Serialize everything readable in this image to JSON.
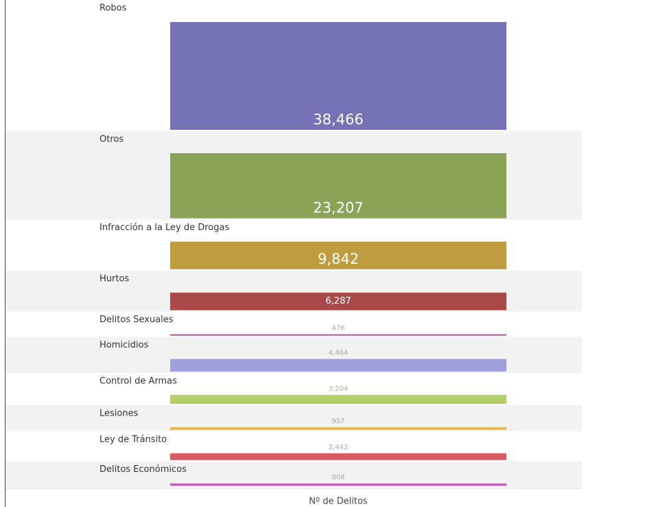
{
  "chart_data": {
    "type": "bar",
    "categories": [
      "Robos",
      "Otros",
      "Infracción a la Ley de Drogas",
      "Hurtos",
      "Delitos Sexuales",
      "Homicidios",
      "Control de Armas",
      "Lesiones",
      "Ley de Tránsito",
      "Delitos Económicos"
    ],
    "values": [
      38466,
      23207,
      9842,
      6287,
      476,
      4464,
      3204,
      957,
      2442,
      808
    ],
    "value_labels": [
      "38,466",
      "23,207",
      "9,842",
      "6,287",
      "476",
      "4,464",
      "3,204",
      "957",
      "2,442",
      "808"
    ],
    "colors": [
      "#7573b5",
      "#8ba356",
      "#bf9c3d",
      "#a84a4a",
      "#b44c9a",
      "#a09fde",
      "#b2cf69",
      "#e5b84e",
      "#d65b63",
      "#c85bbf"
    ],
    "xlabel": "Nº de Delitos"
  }
}
